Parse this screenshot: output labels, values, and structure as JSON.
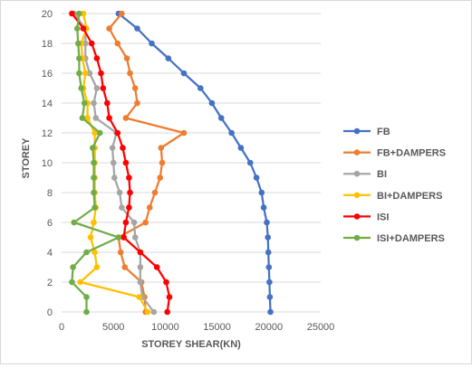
{
  "chart_data": {
    "type": "line",
    "title": "",
    "xlabel": "STOREY SHEAR(KN)",
    "ylabel": "STOREY",
    "xlim": [
      0,
      25000
    ],
    "ylim": [
      0,
      20
    ],
    "xticks": [
      "0",
      "5000",
      "10000",
      "15000",
      "20000",
      "25000"
    ],
    "yticks": [
      "0",
      "2",
      "4",
      "6",
      "8",
      "10",
      "12",
      "14",
      "16",
      "18",
      "20"
    ],
    "grid": "horizontal",
    "legend_position": "right",
    "series": [
      {
        "name": "FB",
        "color": "#4472c4",
        "points": [
          [
            20150,
            0
          ],
          [
            20100,
            1
          ],
          [
            20050,
            2
          ],
          [
            20000,
            3
          ],
          [
            19950,
            4
          ],
          [
            19900,
            5
          ],
          [
            19800,
            6
          ],
          [
            19500,
            7
          ],
          [
            19300,
            8
          ],
          [
            18800,
            9
          ],
          [
            18200,
            10
          ],
          [
            17300,
            11
          ],
          [
            16400,
            12
          ],
          [
            15400,
            13
          ],
          [
            14500,
            14
          ],
          [
            13400,
            15
          ],
          [
            11800,
            16
          ],
          [
            10300,
            17
          ],
          [
            8700,
            18
          ],
          [
            7300,
            19
          ],
          [
            5500,
            20
          ]
        ]
      },
      {
        "name": "FB+DAMPERS",
        "color": "#ed7d31",
        "points": [
          [
            8100,
            0
          ],
          [
            8000,
            1
          ],
          [
            7700,
            2
          ],
          [
            6100,
            3
          ],
          [
            5700,
            4
          ],
          [
            5500,
            5
          ],
          [
            8100,
            6
          ],
          [
            8500,
            7
          ],
          [
            9000,
            8
          ],
          [
            9500,
            9
          ],
          [
            9700,
            10
          ],
          [
            9600,
            11
          ],
          [
            11800,
            12
          ],
          [
            6200,
            13
          ],
          [
            7300,
            14
          ],
          [
            7100,
            15
          ],
          [
            6600,
            16
          ],
          [
            6300,
            17
          ],
          [
            5400,
            18
          ],
          [
            4600,
            19
          ],
          [
            5800,
            20
          ]
        ]
      },
      {
        "name": "BI",
        "color": "#a5a5a5",
        "points": [
          [
            8900,
            0
          ],
          [
            7800,
            1
          ],
          [
            7600,
            2
          ],
          [
            7600,
            3
          ],
          [
            7600,
            4
          ],
          [
            7100,
            5
          ],
          [
            7000,
            6
          ],
          [
            5800,
            7
          ],
          [
            5600,
            8
          ],
          [
            5100,
            9
          ],
          [
            5000,
            10
          ],
          [
            4900,
            11
          ],
          [
            5300,
            12
          ],
          [
            3300,
            13
          ],
          [
            3100,
            14
          ],
          [
            3400,
            15
          ],
          [
            2700,
            16
          ],
          [
            2300,
            17
          ],
          [
            2300,
            18
          ],
          [
            2300,
            19
          ],
          [
            1200,
            20
          ]
        ]
      },
      {
        "name": "BI+DAMPERS",
        "color": "#ffc000",
        "points": [
          [
            8300,
            0
          ],
          [
            7500,
            1
          ],
          [
            1800,
            2
          ],
          [
            3400,
            3
          ],
          [
            3200,
            4
          ],
          [
            2800,
            5
          ],
          [
            3100,
            6
          ],
          [
            3300,
            7
          ],
          [
            3200,
            8
          ],
          [
            3200,
            9
          ],
          [
            3200,
            10
          ],
          [
            3200,
            11
          ],
          [
            3200,
            12
          ],
          [
            2500,
            13
          ],
          [
            2500,
            14
          ],
          [
            2100,
            15
          ],
          [
            2300,
            16
          ],
          [
            2000,
            17
          ],
          [
            1900,
            18
          ],
          [
            2400,
            19
          ],
          [
            2100,
            20
          ]
        ]
      },
      {
        "name": "ISI",
        "color": "#ff0000",
        "points": [
          [
            10200,
            0
          ],
          [
            10400,
            1
          ],
          [
            10100,
            2
          ],
          [
            9200,
            3
          ],
          [
            7600,
            4
          ],
          [
            6000,
            5
          ],
          [
            6200,
            6
          ],
          [
            6500,
            7
          ],
          [
            6600,
            8
          ],
          [
            6500,
            9
          ],
          [
            6200,
            10
          ],
          [
            5900,
            11
          ],
          [
            5400,
            12
          ],
          [
            4600,
            13
          ],
          [
            4400,
            14
          ],
          [
            4000,
            15
          ],
          [
            3800,
            16
          ],
          [
            3400,
            17
          ],
          [
            2900,
            18
          ],
          [
            2100,
            19
          ],
          [
            1000,
            20
          ]
        ]
      },
      {
        "name": "ISI+DAMPERS",
        "color": "#70ad47",
        "points": [
          [
            2400,
            0
          ],
          [
            2400,
            1
          ],
          [
            1000,
            2
          ],
          [
            1100,
            3
          ],
          [
            2400,
            4
          ],
          [
            5500,
            5
          ],
          [
            1200,
            6
          ],
          [
            3200,
            7
          ],
          [
            3100,
            8
          ],
          [
            3100,
            9
          ],
          [
            3100,
            10
          ],
          [
            3000,
            11
          ],
          [
            3700,
            12
          ],
          [
            2000,
            13
          ],
          [
            2200,
            14
          ],
          [
            1900,
            15
          ],
          [
            1700,
            16
          ],
          [
            1700,
            17
          ],
          [
            1600,
            18
          ],
          [
            1500,
            19
          ],
          [
            1700,
            20
          ]
        ]
      }
    ]
  }
}
